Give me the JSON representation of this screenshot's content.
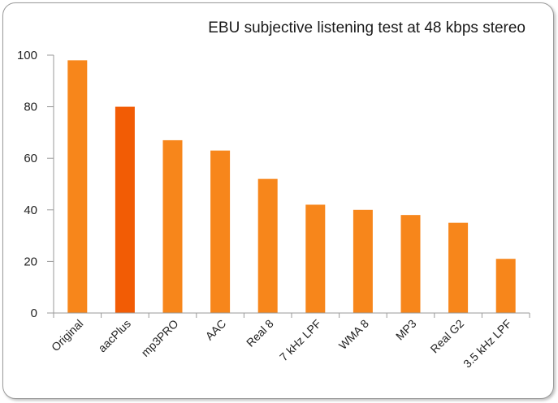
{
  "chart_data": {
    "type": "bar",
    "title": "EBU subjective listening test at 48 kbps stereo",
    "xlabel": "",
    "ylabel": "",
    "categories": [
      "Original",
      "aacPlus",
      "mp3PRO",
      "AAC",
      "Real 8",
      "7 kHz LPF",
      "WMA 8",
      "MP3",
      "Real G2",
      "3.5 kHz LPF"
    ],
    "values": [
      98,
      80,
      67,
      63,
      52,
      42,
      40,
      38,
      35,
      21
    ],
    "ylim": [
      0,
      100
    ],
    "yticks": [
      0,
      20,
      40,
      60,
      80,
      100
    ],
    "grid": false,
    "legend": "none",
    "colors": {
      "bar": "#f7861b",
      "highlight_bar": "#f25c05",
      "axis": "#9a9a9a"
    },
    "highlight_index": 1
  }
}
